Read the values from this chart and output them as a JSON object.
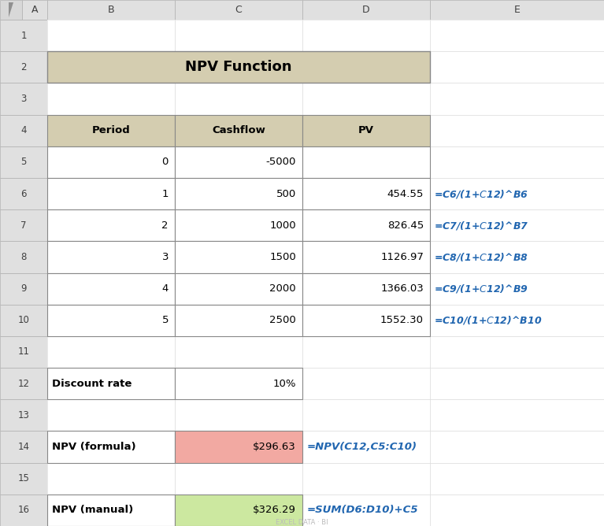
{
  "title": "NPV Function",
  "title_bg": "#d4cdb0",
  "header_bg": "#d4cdb0",
  "col_headers": [
    "Period",
    "Cashflow",
    "PV"
  ],
  "table_data": [
    [
      "0",
      "-5000",
      ""
    ],
    [
      "1",
      "500",
      "454.55"
    ],
    [
      "2",
      "1000",
      "826.45"
    ],
    [
      "3",
      "1500",
      "1126.97"
    ],
    [
      "4",
      "2000",
      "1366.03"
    ],
    [
      "5",
      "2500",
      "1552.30"
    ]
  ],
  "formulas": [
    "",
    "=C6/(1+$C$12)^B6",
    "=C7/(1+$C$12)^B7",
    "=C8/(1+$C$12)^B8",
    "=C9/(1+$C$12)^B9",
    "=C10/(1+$C$12)^B10"
  ],
  "discount_label": "Discount rate",
  "discount_value": "10%",
  "npv_formula_label": "NPV (formula)",
  "npv_formula_value": "$296.63",
  "npv_formula_bg": "#f2a9a2",
  "npv_formula_annotation": "=NPV(C12,C5:C10)",
  "npv_manual_label": "NPV (manual)",
  "npv_manual_value": "$326.29",
  "npv_manual_bg": "#cce8a0",
  "npv_manual_annotation": "=SUM(D6:D10)+C5",
  "annotation_color": "#2166b0",
  "bg_color": "#f2f2f2",
  "header_gray": "#e0e0e0",
  "border_color": "#a0a0a0",
  "cell_border": "#b0b0b0",
  "table_border": "#888888",
  "watermark": "EXCEL DATA · BI"
}
